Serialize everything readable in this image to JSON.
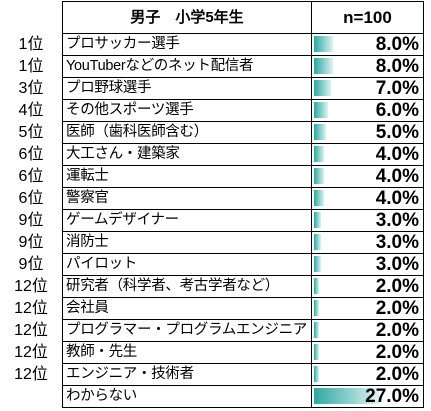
{
  "chart_data": {
    "type": "table",
    "header": {
      "label": "男子　小学5年生",
      "n": "n=100"
    },
    "rows": [
      {
        "rank": "1位",
        "label": "プロサッカー選手",
        "value": 8.0,
        "value_label": "8.0%"
      },
      {
        "rank": "1位",
        "label": "YouTuberなどのネット配信者",
        "value": 8.0,
        "value_label": "8.0%"
      },
      {
        "rank": "3位",
        "label": "プロ野球選手",
        "value": 7.0,
        "value_label": "7.0%"
      },
      {
        "rank": "4位",
        "label": "その他スポーツ選手",
        "value": 6.0,
        "value_label": "6.0%"
      },
      {
        "rank": "5位",
        "label": "医師（歯科医師含む）",
        "value": 5.0,
        "value_label": "5.0%"
      },
      {
        "rank": "6位",
        "label": "大工さん・建築家",
        "value": 4.0,
        "value_label": "4.0%"
      },
      {
        "rank": "6位",
        "label": "運転士",
        "value": 4.0,
        "value_label": "4.0%"
      },
      {
        "rank": "6位",
        "label": "警察官",
        "value": 4.0,
        "value_label": "4.0%"
      },
      {
        "rank": "9位",
        "label": "ゲームデザイナー",
        "value": 3.0,
        "value_label": "3.0%"
      },
      {
        "rank": "9位",
        "label": "消防士",
        "value": 3.0,
        "value_label": "3.0%"
      },
      {
        "rank": "9位",
        "label": "パイロット",
        "value": 3.0,
        "value_label": "3.0%"
      },
      {
        "rank": "12位",
        "label": "研究者（科学者、考古学者など）",
        "value": 2.0,
        "value_label": "2.0%"
      },
      {
        "rank": "12位",
        "label": "会社員",
        "value": 2.0,
        "value_label": "2.0%"
      },
      {
        "rank": "12位",
        "label": "プログラマー・プログラムエンジニア",
        "value": 2.0,
        "value_label": "2.0%"
      },
      {
        "rank": "12位",
        "label": "教師・先生",
        "value": 2.0,
        "value_label": "2.0%"
      },
      {
        "rank": "12位",
        "label": "エンジニア・技術者",
        "value": 2.0,
        "value_label": "2.0%"
      },
      {
        "rank": "",
        "label": "わからない",
        "value": 27.0,
        "value_label": "27.0%"
      }
    ],
    "bar_color": "#2ea7a3",
    "grid": true
  }
}
